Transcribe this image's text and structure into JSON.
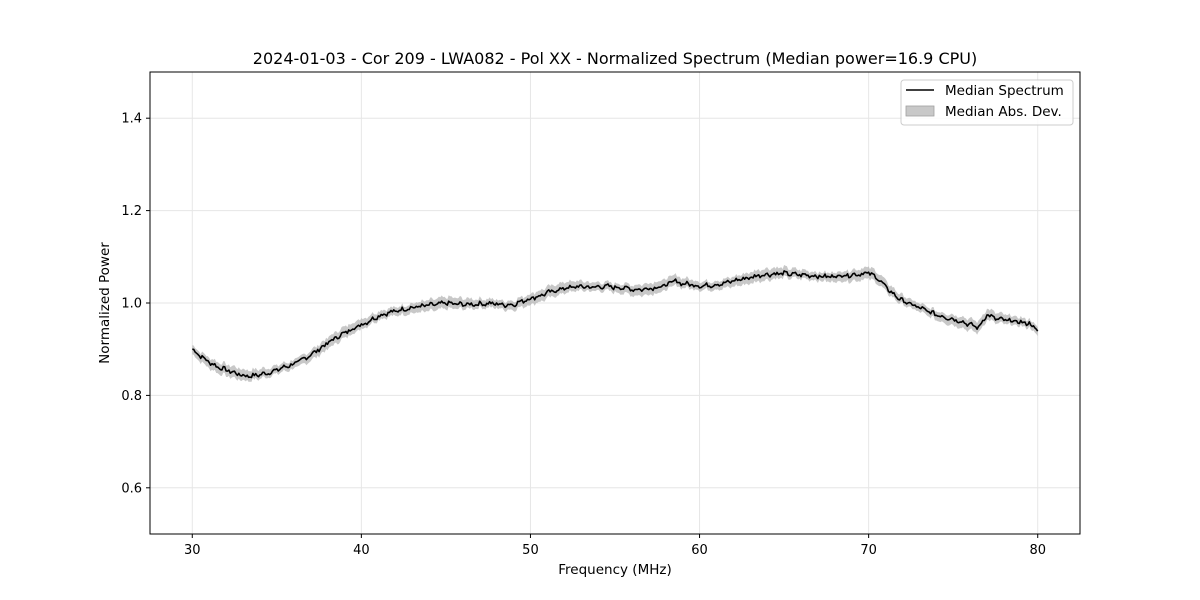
{
  "chart_data": {
    "type": "line",
    "title": "2024-01-03 - Cor 209 - LWA082 - Pol XX - Normalized Spectrum (Median power=16.9 CPU)",
    "xlabel": "Frequency (MHz)",
    "ylabel": "Normalized Power",
    "xlim": [
      27.5,
      82.5
    ],
    "ylim": [
      0.5,
      1.5
    ],
    "xticks": [
      30,
      40,
      50,
      60,
      70,
      80
    ],
    "yticks": [
      0.6,
      0.8,
      1.0,
      1.2,
      1.4
    ],
    "xtick_labels": [
      "30",
      "40",
      "50",
      "60",
      "70",
      "80"
    ],
    "ytick_labels": [
      "0.6",
      "0.8",
      "1.0",
      "1.2",
      "1.4"
    ],
    "grid": true,
    "legend_position": "top-right",
    "legend": [
      "Median Spectrum",
      "Median Abs. Dev."
    ],
    "colors": {
      "line": "#000000",
      "band": "#b0b0b0",
      "grid": "#e6e6e6"
    },
    "series": [
      {
        "name": "Median Spectrum",
        "x": [
          30,
          30.5,
          31,
          31.5,
          32,
          32.5,
          33,
          33.5,
          34,
          34.5,
          35,
          35.5,
          36,
          36.5,
          37,
          37.5,
          38,
          38.5,
          39,
          39.5,
          40,
          40.5,
          41,
          41.5,
          42,
          42.5,
          43,
          43.5,
          44,
          44.5,
          45,
          45.5,
          46,
          46.5,
          47,
          47.5,
          48,
          48.5,
          49,
          49.5,
          50,
          50.5,
          51,
          51.5,
          52,
          52.5,
          53,
          53.5,
          54,
          54.5,
          55,
          55.5,
          56,
          56.5,
          57,
          57.5,
          58,
          58.5,
          59,
          59.5,
          60,
          60.5,
          61,
          61.5,
          62,
          62.5,
          63,
          63.5,
          64,
          64.5,
          65,
          65.5,
          66,
          66.5,
          67,
          67.5,
          68,
          68.5,
          69,
          69.5,
          70,
          70.5,
          71,
          71.5,
          72,
          72.5,
          73,
          73.5,
          74,
          74.5,
          75,
          75.5,
          76,
          76.5,
          77,
          77.5,
          78,
          78.5,
          79,
          79.5,
          80
        ],
        "values": [
          0.9,
          0.885,
          0.872,
          0.862,
          0.855,
          0.849,
          0.843,
          0.842,
          0.845,
          0.849,
          0.855,
          0.862,
          0.868,
          0.877,
          0.888,
          0.9,
          0.913,
          0.925,
          0.935,
          0.945,
          0.953,
          0.962,
          0.972,
          0.978,
          0.982,
          0.987,
          0.99,
          0.993,
          0.995,
          0.997,
          1.0,
          0.998,
          0.997,
          0.997,
          0.998,
          0.999,
          0.998,
          0.996,
          0.997,
          1.004,
          1.01,
          1.015,
          1.022,
          1.027,
          1.032,
          1.034,
          1.036,
          1.034,
          1.035,
          1.036,
          1.034,
          1.033,
          1.03,
          1.029,
          1.032,
          1.034,
          1.038,
          1.048,
          1.042,
          1.04,
          1.037,
          1.038,
          1.04,
          1.043,
          1.048,
          1.052,
          1.055,
          1.06,
          1.062,
          1.063,
          1.064,
          1.062,
          1.061,
          1.06,
          1.058,
          1.057,
          1.058,
          1.06,
          1.061,
          1.063,
          1.065,
          1.055,
          1.035,
          1.018,
          1.005,
          0.997,
          0.99,
          0.982,
          0.975,
          0.97,
          0.965,
          0.96,
          0.953,
          0.947,
          0.975,
          0.966,
          0.963,
          0.961,
          0.958,
          0.956,
          0.94
        ]
      }
    ],
    "mad": 0.012
  }
}
